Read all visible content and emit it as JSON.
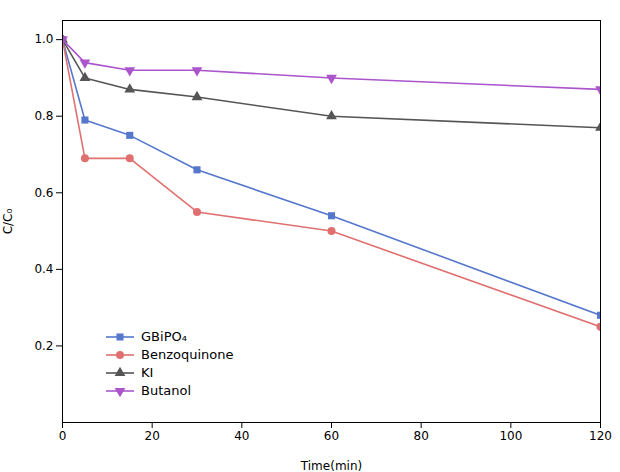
{
  "chart_data": {
    "type": "line",
    "xlabel": "Time(min)",
    "ylabel": "C/C₀",
    "x": [
      0,
      5,
      15,
      30,
      60,
      120
    ],
    "xlim": [
      0,
      120
    ],
    "xticks": [
      0,
      20,
      40,
      60,
      80,
      100,
      120
    ],
    "ylim": [
      0.0,
      1.05
    ],
    "yticks": [
      0.2,
      0.4,
      0.6,
      0.8,
      {
        "value": 1.0,
        "label": "1.0"
      }
    ],
    "series": [
      {
        "name": "GBiPO₄",
        "color": "#5577CC",
        "marker": "square",
        "values": [
          1.0,
          0.79,
          0.75,
          0.66,
          0.54,
          0.28
        ]
      },
      {
        "name": "Benzoquinone",
        "color": "#E07070",
        "marker": "circle",
        "values": [
          1.0,
          0.69,
          0.69,
          0.55,
          0.5,
          0.25
        ]
      },
      {
        "name": "KI",
        "color": "#555555",
        "marker": "triangle_up",
        "values": [
          1.0,
          0.9,
          0.87,
          0.85,
          0.8,
          0.77
        ]
      },
      {
        "name": "Butanol",
        "color": "#AA55CC",
        "marker": "triangle_down",
        "values": [
          1.0,
          0.94,
          0.92,
          0.92,
          0.9,
          0.87
        ]
      }
    ],
    "legend": "lower left",
    "grid": false
  }
}
